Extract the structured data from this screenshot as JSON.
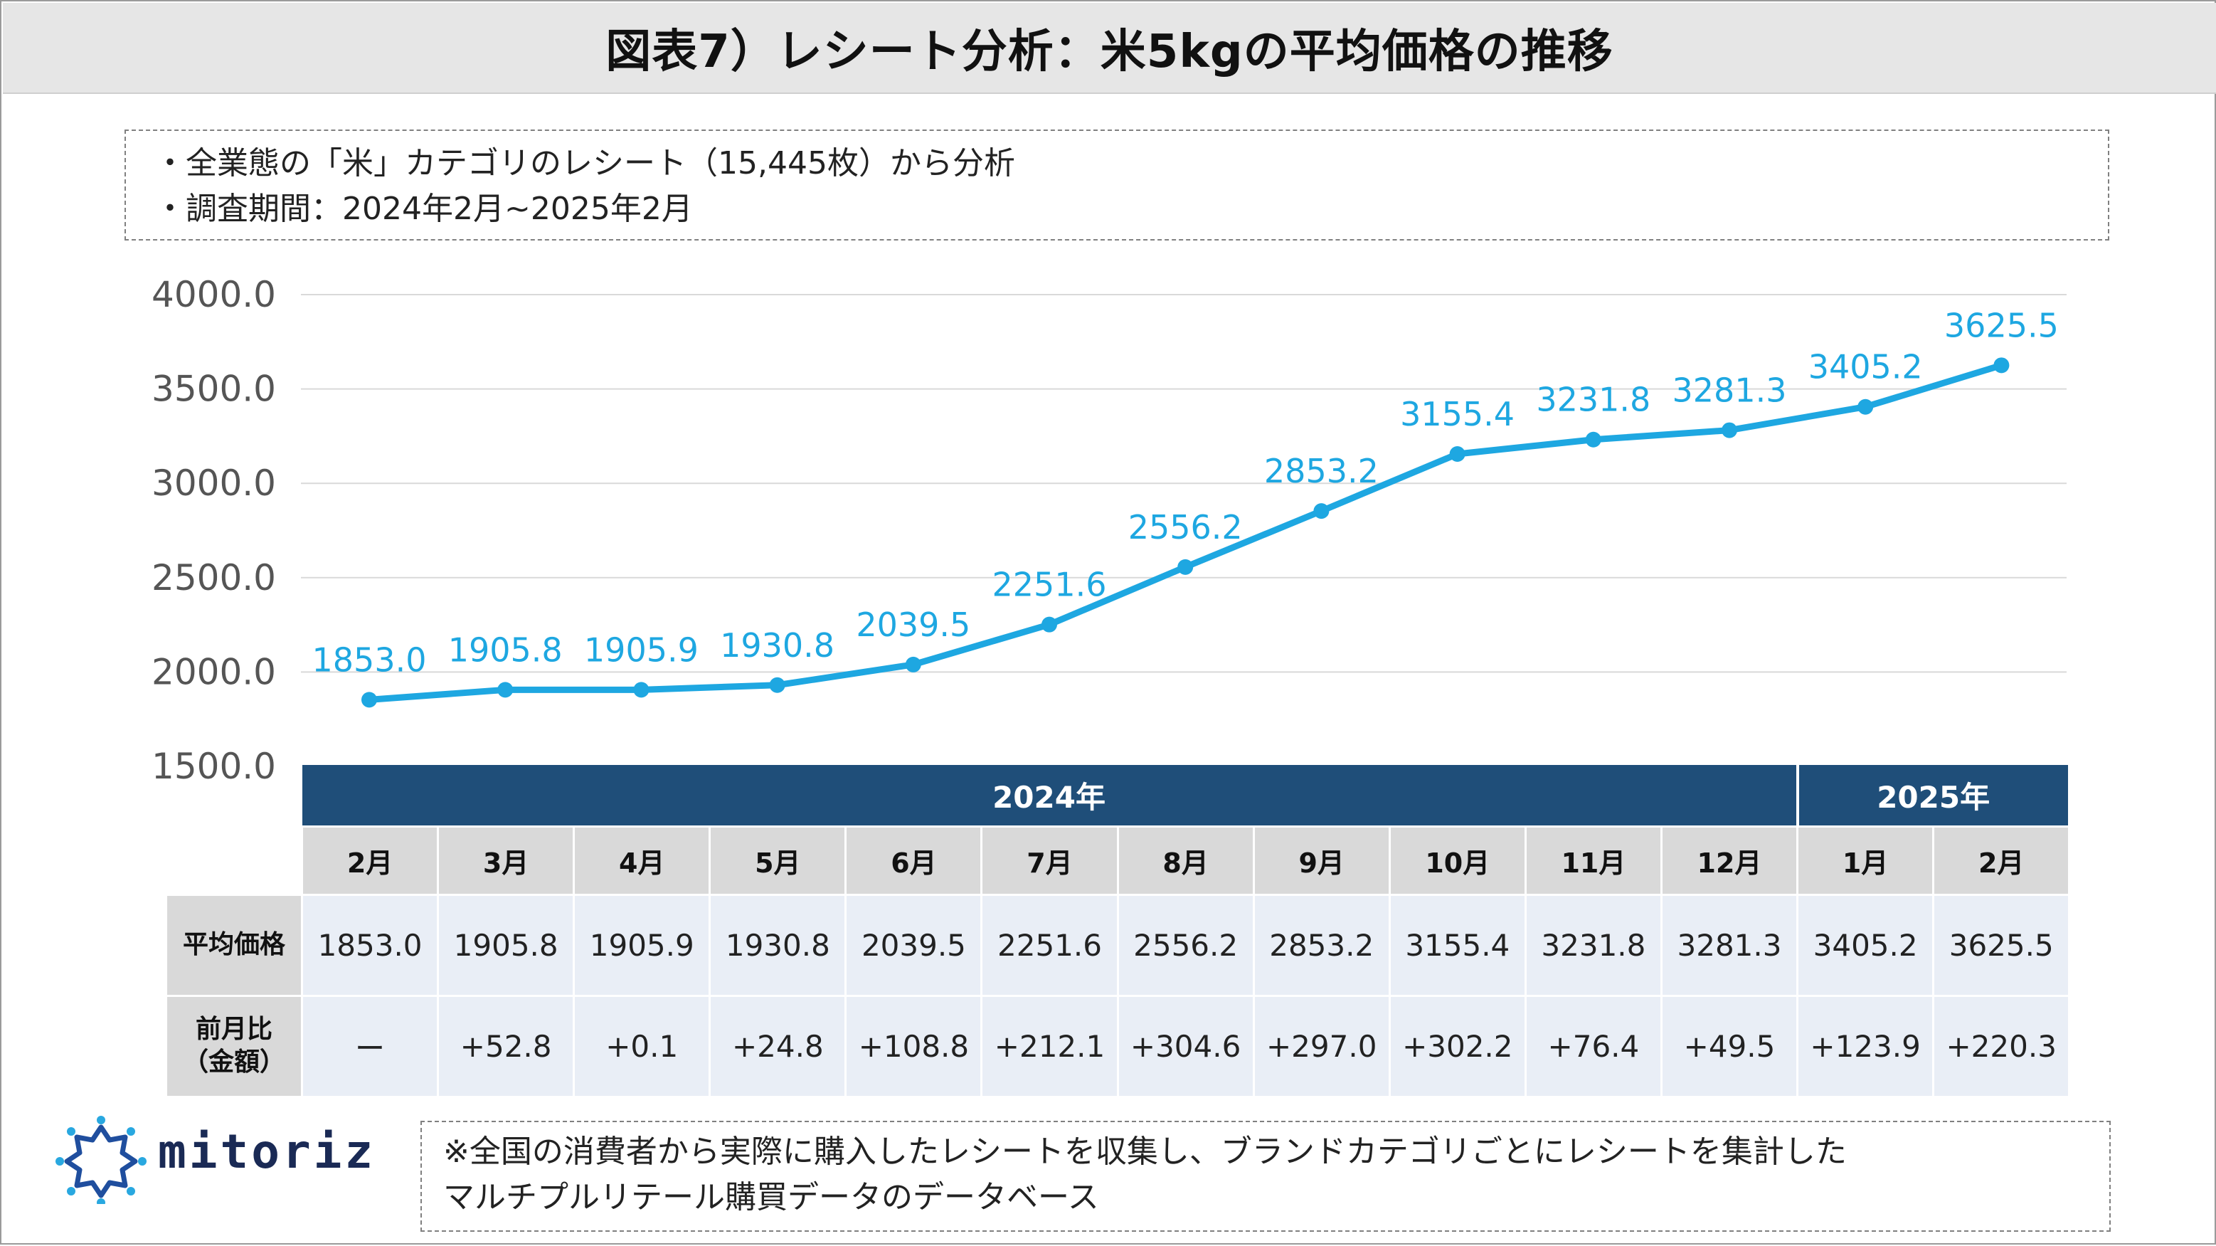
{
  "title": "図表7）レシート分析：米5kgの平均価格の推移",
  "info": [
    "・全業態の「米」カテゴリのレシート（15,445枚）から分析",
    "・調査期間：2024年2月~2025年2月"
  ],
  "colors": {
    "line": "#1ea7e1",
    "label": "#1ea7e1",
    "header": "#1f4e79",
    "grid": "#d9d9d9",
    "axis_text": "#555555"
  },
  "chart_data": {
    "type": "line",
    "categories": [
      "2月",
      "3月",
      "4月",
      "5月",
      "6月",
      "7月",
      "8月",
      "9月",
      "10月",
      "11月",
      "12月",
      "1月",
      "2月"
    ],
    "series": [
      {
        "values": [
          1853.0,
          1905.8,
          1905.9,
          1930.8,
          2039.5,
          2251.6,
          2556.2,
          2853.2,
          3155.4,
          3231.8,
          3281.3,
          3405.2,
          3625.5
        ]
      }
    ],
    "data_labels": [
      "1853.0",
      "1905.8",
      "1905.9",
      "1930.8",
      "2039.5",
      "2251.6",
      "2556.2",
      "2853.2",
      "3155.4",
      "3231.8",
      "3281.3",
      "3405.2",
      "3625.5"
    ],
    "ylim": [
      1500,
      4000
    ],
    "yticks": [
      "1500.0",
      "2000.0",
      "2500.0",
      "3000.0",
      "3500.0",
      "4000.0"
    ],
    "grid": true
  },
  "table": {
    "years": [
      {
        "label": "2024年",
        "span": 11
      },
      {
        "label": "2025年",
        "span": 2
      }
    ],
    "months": [
      "2月",
      "3月",
      "4月",
      "5月",
      "6月",
      "7月",
      "8月",
      "9月",
      "10月",
      "11月",
      "12月",
      "1月",
      "2月"
    ],
    "rows": [
      {
        "label": "平均価格",
        "values": [
          "1853.0",
          "1905.8",
          "1905.9",
          "1930.8",
          "2039.5",
          "2251.6",
          "2556.2",
          "2853.2",
          "3155.4",
          "3231.8",
          "3281.3",
          "3405.2",
          "3625.5"
        ]
      },
      {
        "label": "前月比\n（金額）",
        "values": [
          "ー",
          "+52.8",
          "+0.1",
          "+24.8",
          "+108.8",
          "+212.1",
          "+304.6",
          "+297.0",
          "+302.2",
          "+76.4",
          "+49.5",
          "+123.9",
          "+220.3"
        ]
      }
    ]
  },
  "logo": {
    "text": "mitoriz"
  },
  "note": [
    "※全国の消費者から実際に購入したレシートを収集し、ブランドカテゴリごとにレシートを集計した",
    "マルチプルリテール購買データのデータベース"
  ]
}
